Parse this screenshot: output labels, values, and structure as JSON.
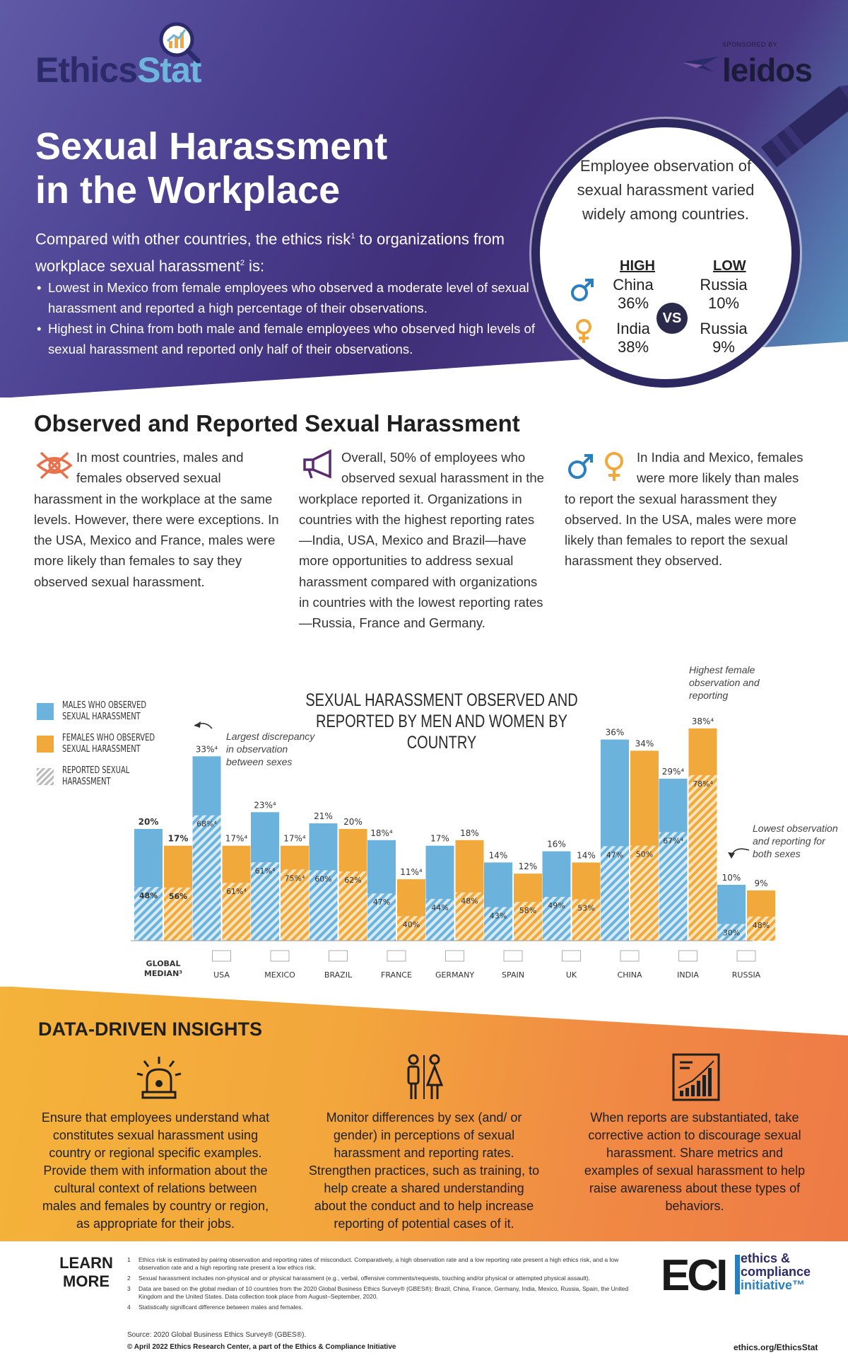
{
  "logo": {
    "part1": "Ethics",
    "part2": "Stat"
  },
  "sponsor": {
    "label": "SPONSORED BY",
    "name": "leidos"
  },
  "header": {
    "title": "Sexual Harassment in the Workplace",
    "intro_pre": "Compared with other countries, the ethics risk",
    "intro_sup1": "1",
    "intro_mid": " to organizations from workplace sexual harassment",
    "intro_sup2": "2",
    "intro_post": " is:",
    "bullets": [
      "Lowest in Mexico from female employees who observed a moderate level of sexual harassment and reported a high percentage of their observations.",
      "Highest in China from both male and female employees who observed high levels of sexual harassment and reported only half of their observations."
    ]
  },
  "callout": {
    "text": "Employee observation of sexual harassment varied widely among countries.",
    "high_label": "HIGH",
    "low_label": "LOW",
    "vs": "VS",
    "male_high_country": "China",
    "male_high_value": "36%",
    "male_low_country": "Russia",
    "male_low_value": "10%",
    "female_high_country": "India",
    "female_high_value": "38%",
    "female_low_country": "Russia",
    "female_low_value": "9%"
  },
  "observed": {
    "title": "Observed and Reported Sexual Harassment",
    "para1": "In most countries, males and females observed sexual harassment in the workplace at the same levels. However, there were exceptions. In the USA, Mexico and France, males were more likely than females to say they observed sexual harassment.",
    "para2": "Overall, 50% of employees who observed sexual harassment in the workplace reported it. Organizations in countries with the highest reporting rates—India, USA, Mexico and Brazil—have more opportunities to address sexual harassment compared with organizations in countries with the lowest reporting rates—Russia, France and Germany.",
    "para3": "In India and Mexico, females were more likely than males to report the sexual harassment they observed. In the USA, males were more likely than females to report the sexual harassment they observed."
  },
  "chart_data": {
    "type": "bar",
    "title": "SEXUAL HARASSMENT OBSERVED AND REPORTED BY MEN AND WOMEN BY COUNTRY",
    "legend": [
      "MALES WHO OBSERVED SEXUAL HARASSMENT",
      "FEMALES WHO OBSERVED SEXUAL HARASSMENT",
      "REPORTED SEXUAL HARASSMENT"
    ],
    "categories": [
      "GLOBAL MEDIAN³",
      "USA",
      "MEXICO",
      "BRAZIL",
      "FRANCE",
      "GERMANY",
      "SPAIN",
      "UK",
      "CHINA",
      "INDIA",
      "RUSSIA"
    ],
    "series": [
      {
        "name": "MALES WHO OBSERVED SEXUAL HARASSMENT",
        "values": [
          20,
          33,
          23,
          21,
          18,
          17,
          14,
          16,
          36,
          29,
          10
        ],
        "labels": [
          "20%",
          "33%⁴",
          "23%⁴",
          "21%",
          "18%⁴",
          "17%",
          "14%",
          "16%",
          "36%",
          "29%⁴",
          "10%"
        ]
      },
      {
        "name": "FEMALES WHO OBSERVED SEXUAL HARASSMENT",
        "values": [
          17,
          17,
          17,
          20,
          11,
          18,
          12,
          14,
          34,
          38,
          9
        ],
        "labels": [
          "17%",
          "17%⁴",
          "17%⁴",
          "20%",
          "11%⁴",
          "18%",
          "12%",
          "14%",
          "34%",
          "38%⁴",
          "9%"
        ]
      }
    ],
    "reported": {
      "male_values": [
        48,
        68,
        61,
        60,
        47,
        44,
        43,
        49,
        47,
        67,
        30
      ],
      "male_labels": [
        "48%",
        "68%⁴",
        "61%⁴",
        "60%",
        "47%",
        "44%",
        "43%",
        "49%",
        "47%",
        "67%⁴",
        "30%"
      ],
      "female_values": [
        56,
        61,
        75,
        62,
        40,
        48,
        58,
        53,
        50,
        78,
        48
      ],
      "female_labels": [
        "56%",
        "61%⁴",
        "75%⁴",
        "62%",
        "40%",
        "48%",
        "58%",
        "53%",
        "50%",
        "78%⁴",
        "48%"
      ]
    },
    "annotations": [
      "Largest discrepancy in observation between sexes",
      "Highest female observation and reporting",
      "Lowest observation and reporting for both sexes"
    ],
    "colors": {
      "male": "#6bb3dc",
      "female": "#f2a93b"
    }
  },
  "insights": {
    "title": "DATA-DRIVEN INSIGHTS",
    "items": [
      "Ensure that employees understand what constitutes sexual harassment using country or regional specific examples. Provide them with information about the cultural context of relations between males and females by country or region, as appropriate for their jobs.",
      "Monitor differences by sex (and/ or gender) in perceptions of sexual harassment and reporting rates. Strengthen practices, such as training, to help create a shared understanding about the conduct and to help increase reporting of potential cases of it.",
      "When reports are substantiated, take corrective action to discourage sexual harassment. Share metrics and examples of sexual harassment to help raise awareness about these types of behaviors."
    ]
  },
  "footer": {
    "learn_more": "LEARN MORE",
    "notes": [
      {
        "n": "1",
        "text": "Ethics risk is estimated by pairing observation and reporting rates of misconduct. Comparatively, a high observation rate and a low reporting rate present a high ethics risk, and a low observation rate and a high reporting rate present a low ethics risk."
      },
      {
        "n": "2",
        "text": "Sexual harassment includes non-physical and or physical harassment (e.g., verbal, offensive comments/requests, touching and/or physical or attempted physical assault)."
      },
      {
        "n": "3",
        "text": "Data are based on the global median of 10 countries from the 2020 Global Business Ethics Survey® (GBES®): Brazil, China, France, Germany, India, Mexico, Russia, Spain, the United Kingdom and the United States. Data collection took place from August–September, 2020."
      },
      {
        "n": "4",
        "text": "Statistically significant difference between males and females."
      }
    ],
    "source": "Source: 2020 Global Business Ethics Survey® (GBES®).",
    "copyright": "© April 2022 Ethics Research Center, a part of the Ethics & Compliance Initiative",
    "eci_mark": "ECI",
    "eci_line1": "ethics &",
    "eci_line2": "compliance",
    "eci_line3": "initiative™",
    "url": "ethics.org/EthicsStat"
  }
}
